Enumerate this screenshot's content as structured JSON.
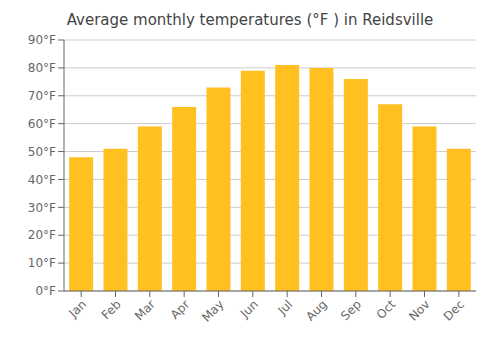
{
  "chart_data": {
    "type": "bar",
    "title": "Average monthly temperatures (°F ) in Reidsville",
    "categories": [
      "Jan",
      "Feb",
      "Mar",
      "Apr",
      "May",
      "Jun",
      "Jul",
      "Aug",
      "Sep",
      "Oct",
      "Nov",
      "Dec"
    ],
    "values": [
      48,
      51,
      59,
      66,
      73,
      79,
      81,
      80,
      76,
      67,
      59,
      51
    ],
    "color": "#FFC020",
    "ylim": [
      0,
      90
    ],
    "yticks": [
      {
        "value": 0,
        "label": "0°F"
      },
      {
        "value": 10,
        "label": "10°F"
      },
      {
        "value": 20,
        "label": "20°F"
      },
      {
        "value": 30,
        "label": "30°F"
      },
      {
        "value": 40,
        "label": "40°F"
      },
      {
        "value": 50,
        "label": "50°F"
      },
      {
        "value": 60,
        "label": "60°F"
      },
      {
        "value": 70,
        "label": "70°F"
      },
      {
        "value": 80,
        "label": "80°F"
      },
      {
        "value": 90,
        "label": "90°F"
      }
    ],
    "grid": true
  }
}
